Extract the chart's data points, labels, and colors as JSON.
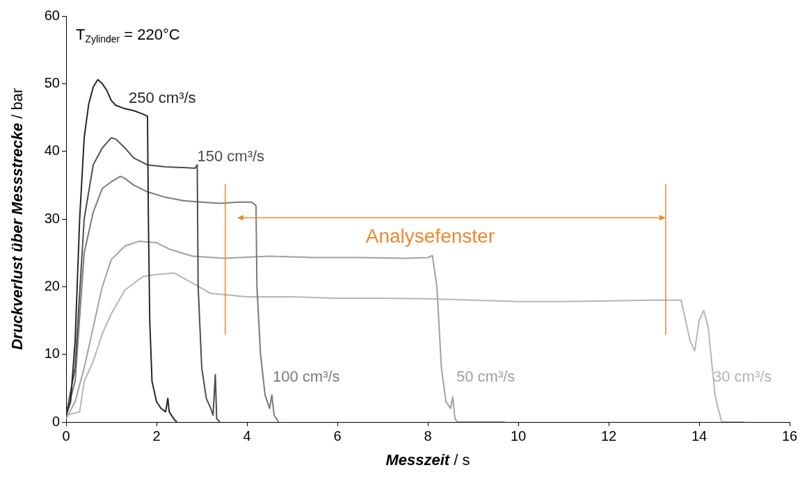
{
  "chart_data": {
    "type": "line",
    "xlabel": "Messzeit / s",
    "ylabel": "Druckverlust über Messstrecke / bar",
    "xlim": [
      0,
      16
    ],
    "xticks": [
      0,
      2,
      4,
      6,
      8,
      10,
      12,
      14,
      16
    ],
    "ylim": [
      0,
      60
    ],
    "yticks": [
      0,
      10,
      20,
      30,
      40,
      50,
      60
    ],
    "grid": false,
    "legend": false,
    "marker": "none",
    "line_style": "solid",
    "series": [
      {
        "name": "250 cm³/s",
        "color": "#262626",
        "x": [
          0,
          0.1,
          0.2,
          0.3,
          0.4,
          0.5,
          0.6,
          0.7,
          0.8,
          0.9,
          1.0,
          1.1,
          1.3,
          1.5,
          1.7,
          1.8,
          1.82,
          1.85,
          1.9,
          2.0,
          2.1,
          2.2,
          2.25,
          2.28,
          2.4,
          2.45
        ],
        "values": [
          1,
          3,
          12,
          30,
          42,
          47,
          49.5,
          50.6,
          50,
          49,
          47.5,
          46.8,
          46.3,
          46,
          45.5,
          45.2,
          30,
          15,
          6,
          3,
          2,
          1.5,
          3.5,
          1.5,
          0.3,
          0
        ]
      },
      {
        "name": "150 cm³/s",
        "color": "#4d4d4d",
        "x": [
          0,
          0.2,
          0.4,
          0.6,
          0.8,
          1.0,
          1.1,
          1.3,
          1.5,
          1.8,
          2.2,
          2.6,
          2.85,
          2.9,
          2.92,
          3.0,
          3.1,
          3.2,
          3.25,
          3.3,
          3.33,
          3.4
        ],
        "values": [
          1,
          8,
          30,
          38,
          40.5,
          42,
          41.8,
          40.5,
          39,
          38,
          37.7,
          37.6,
          37.5,
          38,
          20,
          8,
          3.5,
          2,
          1,
          7,
          0.5,
          0
        ]
      },
      {
        "name": "100 cm³/s",
        "color": "#7a7a7a",
        "x": [
          0,
          0.2,
          0.4,
          0.6,
          0.8,
          1.0,
          1.2,
          1.3,
          1.5,
          1.8,
          2.2,
          2.6,
          3.0,
          3.4,
          3.8,
          4.1,
          4.2,
          4.22,
          4.3,
          4.4,
          4.5,
          4.55,
          4.6,
          4.7
        ],
        "values": [
          1,
          6,
          25,
          31,
          34.5,
          35.5,
          36.3,
          36,
          35,
          34,
          33.2,
          32.7,
          32.5,
          32.3,
          32.5,
          32.5,
          32,
          20,
          10,
          4,
          2,
          4,
          1,
          0
        ]
      },
      {
        "name": "50 cm³/s",
        "color": "#a0a0a0",
        "x": [
          0,
          0.2,
          0.4,
          0.6,
          0.8,
          1.0,
          1.3,
          1.6,
          2.0,
          2.3,
          2.8,
          3.5,
          4.5,
          5.5,
          6.5,
          7.5,
          8.0,
          8.1,
          8.2,
          8.3,
          8.4,
          8.5,
          8.55,
          8.6,
          8.65,
          9.7
        ],
        "values": [
          0.5,
          3,
          8,
          14,
          20,
          24,
          26,
          26.7,
          26.5,
          25.5,
          24.5,
          24.2,
          24.5,
          24.3,
          24.3,
          24.2,
          24.3,
          24.6,
          20,
          8,
          3,
          2,
          3.7,
          0.5,
          0,
          0
        ]
      },
      {
        "name": "30 cm³/s",
        "color": "#b5b5b5",
        "x": [
          0,
          0.3,
          0.4,
          0.6,
          0.8,
          1.0,
          1.3,
          1.7,
          2.0,
          2.4,
          2.8,
          3.2,
          4.0,
          5.0,
          6.0,
          7.0,
          8.0,
          9.0,
          10.0,
          11.0,
          12.0,
          13.0,
          13.6,
          13.8,
          13.9,
          14.0,
          14.1,
          14.2,
          14.35,
          14.42,
          14.5,
          15.0
        ],
        "values": [
          1,
          1.5,
          6,
          9,
          13,
          16,
          19.5,
          21.5,
          21.8,
          22,
          20.5,
          19,
          18.5,
          18.5,
          18.3,
          18.3,
          18.2,
          18,
          17.8,
          17.8,
          17.9,
          18,
          18,
          12,
          10.5,
          15,
          16.5,
          14,
          4,
          2,
          0,
          0
        ]
      }
    ],
    "ref_lines": [
      {
        "axis": "x",
        "value": 3.52,
        "color": "#f0872d"
      },
      {
        "axis": "x",
        "value": 13.26,
        "color": "#f0872d"
      }
    ],
    "annotations": [
      "T$_{Zylinder}$ = 220°C",
      "Analysefenster"
    ]
  }
}
